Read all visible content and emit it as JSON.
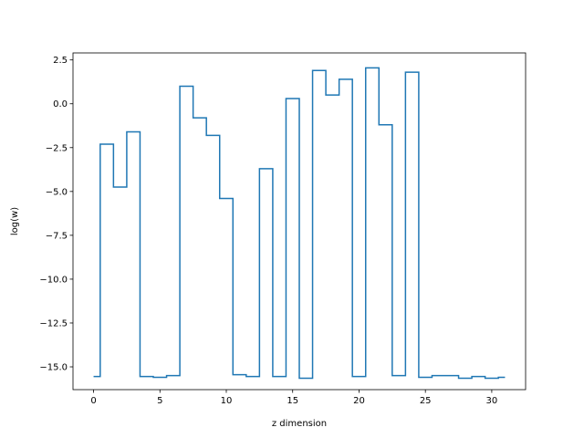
{
  "chart_data": {
    "type": "line",
    "drawstyle": "steps-mid",
    "title": "",
    "xlabel": "z dimension",
    "ylabel": "log(w)",
    "xlim": [
      -1.55,
      32.55
    ],
    "ylim": [
      -16.3,
      2.9
    ],
    "grid": false,
    "legend": "none",
    "xticks": [
      0,
      5,
      10,
      15,
      20,
      25,
      30
    ],
    "xtick_labels": [
      "0",
      "5",
      "10",
      "15",
      "20",
      "25",
      "30"
    ],
    "yticks": [
      2.5,
      0.0,
      -2.5,
      -5.0,
      -7.5,
      -10.0,
      -12.5,
      -15.0
    ],
    "ytick_labels": [
      "2.5",
      "0.0",
      "−2.5",
      "−5.0",
      "−7.5",
      "−10.0",
      "−12.5",
      "−15.0"
    ],
    "series": [
      {
        "color": "#1f77b4",
        "x": [
          0,
          1,
          2,
          3,
          4,
          5,
          6,
          7,
          8,
          9,
          10,
          11,
          12,
          13,
          14,
          15,
          16,
          17,
          18,
          19,
          20,
          21,
          22,
          23,
          24,
          25,
          26,
          27,
          28,
          29,
          30,
          31
        ],
        "y": [
          -15.55,
          -2.3,
          -4.75,
          -1.6,
          -15.55,
          -15.6,
          -15.5,
          1.0,
          -0.8,
          -1.8,
          -5.4,
          -15.45,
          -15.55,
          -3.7,
          -15.55,
          0.3,
          -15.65,
          1.9,
          0.5,
          1.4,
          -15.55,
          2.05,
          -1.2,
          -15.5,
          1.8,
          -15.6,
          -15.5,
          -15.5,
          -15.65,
          -15.55,
          -15.65,
          -15.6
        ]
      }
    ]
  }
}
